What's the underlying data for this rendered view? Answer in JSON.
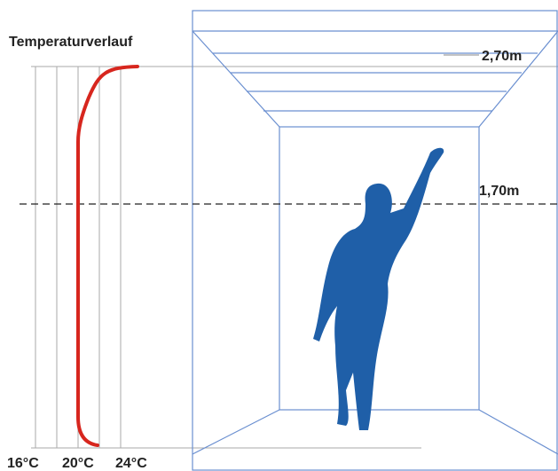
{
  "title": "Temperaturverlauf",
  "heights": [
    "2,70m",
    "1,70m"
  ],
  "temperatures": [
    "16°C",
    "20°C",
    "24°C"
  ]
}
